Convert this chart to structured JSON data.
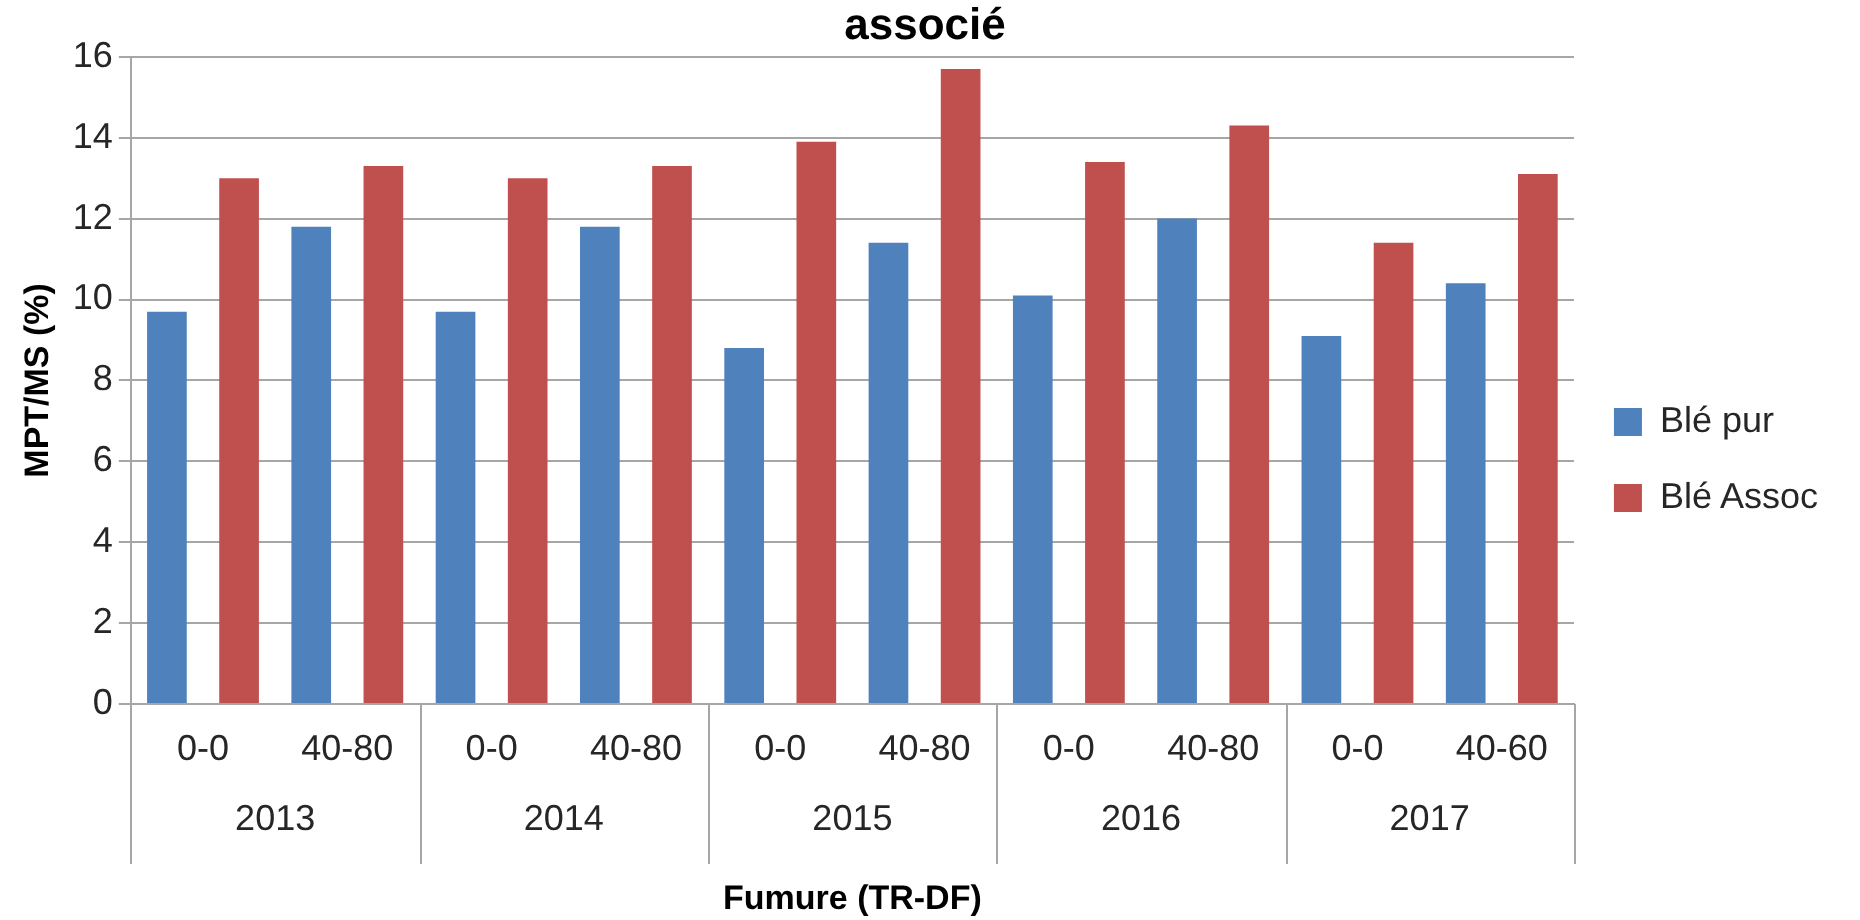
{
  "chart_data": {
    "type": "bar",
    "title": "associé",
    "xlabel": "Fumure (TR-DF)",
    "ylabel": "MPT/MS (%)",
    "categories": [
      "0-0",
      "40-80",
      "0-0",
      "40-80",
      "0-0",
      "40-80",
      "0-0",
      "40-80",
      "0-0",
      "40-60"
    ],
    "annotations": [
      "2013",
      "2014",
      "2015",
      "2016",
      "2017"
    ],
    "series": [
      {
        "name": "Blé pur",
        "color": "#4f81bd",
        "values": [
          9.7,
          11.8,
          9.7,
          11.8,
          8.8,
          11.4,
          10.1,
          12.0,
          9.1,
          10.4
        ]
      },
      {
        "name": "Blé Assoc",
        "color": "#c0504d",
        "values": [
          13.0,
          13.3,
          13.0,
          13.3,
          13.9,
          15.7,
          13.4,
          14.3,
          11.4,
          13.1
        ]
      }
    ],
    "ylim": [
      0,
      16
    ],
    "yticks": [
      0,
      2,
      4,
      6,
      8,
      10,
      12,
      14,
      16
    ],
    "grid": "y",
    "legend": "right"
  }
}
